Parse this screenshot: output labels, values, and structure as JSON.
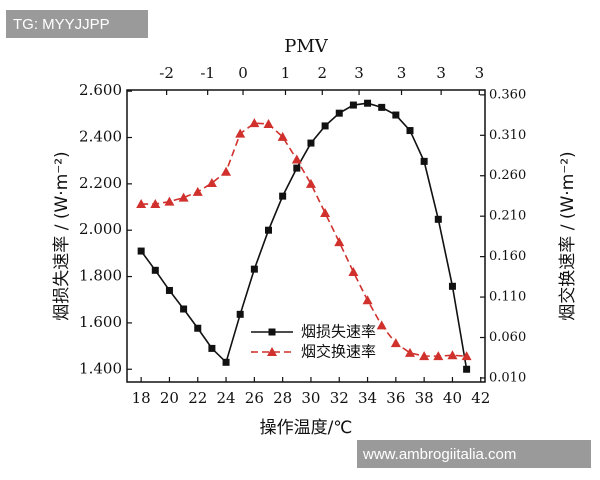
{
  "chart_data": {
    "type": "line",
    "x_label": "操作温度/℃",
    "y_label": "烟损失速率 / (W·m⁻²)",
    "y2_label": "烟交换速率 / (W·m⁻²)",
    "top_axis": {
      "label": "PMV",
      "ticks": [
        {
          "value": 19.8,
          "label": "-2"
        },
        {
          "value": 22.7,
          "label": "-1"
        },
        {
          "value": 25.2,
          "label": "0"
        },
        {
          "value": 28.2,
          "label": "1"
        },
        {
          "value": 30.8,
          "label": "2"
        },
        {
          "value": 33.4,
          "label": "3"
        },
        {
          "value": 36.4,
          "label": "3"
        },
        {
          "value": 39.2,
          "label": "3"
        },
        {
          "value": 41.9,
          "label": "3"
        }
      ]
    },
    "x": [
      18,
      19,
      20,
      21,
      22,
      23,
      24,
      25,
      26,
      27,
      28,
      29,
      30,
      31,
      32,
      33,
      34,
      35,
      36,
      37,
      38,
      39,
      40,
      41
    ],
    "xlim": [
      17,
      42.3
    ],
    "xticks": [
      18,
      20,
      22,
      24,
      26,
      28,
      30,
      32,
      34,
      36,
      38,
      40,
      42
    ],
    "ylim": [
      1.345,
      2.605
    ],
    "yticks": [
      {
        "value": 1.4,
        "label": "1.400"
      },
      {
        "value": 1.6,
        "label": "1.600"
      },
      {
        "value": 1.8,
        "label": "1.800"
      },
      {
        "value": 2.0,
        "label": "2.000"
      },
      {
        "value": 2.2,
        "label": "2.200"
      },
      {
        "value": 2.4,
        "label": "2.400"
      },
      {
        "value": 2.6,
        "label": "2.600"
      }
    ],
    "y2lim": [
      0.005,
      0.366
    ],
    "y2ticks": [
      {
        "value": 0.01,
        "label": "0.010"
      },
      {
        "value": 0.06,
        "label": "0.060"
      },
      {
        "value": 0.11,
        "label": "0.110"
      },
      {
        "value": 0.16,
        "label": "0.160"
      },
      {
        "value": 0.21,
        "label": "0.210"
      },
      {
        "value": 0.26,
        "label": "0.260"
      },
      {
        "value": 0.31,
        "label": "0.310"
      },
      {
        "value": 0.36,
        "label": "0.360"
      }
    ],
    "legend": "lower center",
    "series": [
      {
        "name": "烟损失速率",
        "color": "#111111",
        "marker": "square",
        "dashed": false,
        "values": [
          1.91,
          1.827,
          1.74,
          1.66,
          1.577,
          1.49,
          1.43,
          1.637,
          1.832,
          2.0,
          2.147,
          2.268,
          2.376,
          2.45,
          2.505,
          2.54,
          2.548,
          2.53,
          2.497,
          2.43,
          2.297,
          2.047,
          1.758,
          1.4
        ]
      },
      {
        "name": "烟交换速率",
        "color": "#d0312d",
        "marker": "triangle",
        "dashed": true,
        "axis": "y2",
        "values": [
          0.225,
          0.225,
          0.228,
          0.233,
          0.24,
          0.251,
          0.265,
          0.312,
          0.325,
          0.324,
          0.308,
          0.28,
          0.25,
          0.214,
          0.178,
          0.141,
          0.106,
          0.075,
          0.053,
          0.041,
          0.037,
          0.037,
          0.038,
          0.037
        ]
      }
    ]
  },
  "watermarks": {
    "top_left": "TG: MYYJJPP",
    "bottom_right": "www.ambrogiitalia.com"
  }
}
